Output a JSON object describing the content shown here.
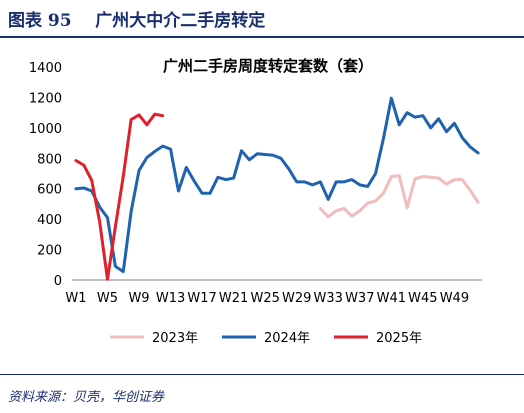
{
  "figure": {
    "label": "图表 95",
    "title": "广州大中介二手房转定",
    "source": "资料来源：贝壳，华创证券"
  },
  "chart_data": {
    "type": "line",
    "title": "广州二手房周度转定套数（套）",
    "xlabel": "",
    "ylabel": "",
    "ylim": [
      0,
      1400
    ],
    "yticks": [
      "0",
      "200",
      "400",
      "600",
      "800",
      "1000",
      "1200",
      "1400"
    ],
    "x": [
      "W1",
      "W2",
      "W3",
      "W4",
      "W5",
      "W6",
      "W7",
      "W8",
      "W9",
      "W10",
      "W11",
      "W12",
      "W13",
      "W14",
      "W15",
      "W16",
      "W17",
      "W18",
      "W19",
      "W20",
      "W21",
      "W22",
      "W23",
      "W24",
      "W25",
      "W26",
      "W27",
      "W28",
      "W29",
      "W30",
      "W31",
      "W32",
      "W33",
      "W34",
      "W35",
      "W36",
      "W37",
      "W38",
      "W39",
      "W40",
      "W41",
      "W42",
      "W43",
      "W44",
      "W45",
      "W46",
      "W47",
      "W48",
      "W49",
      "W50",
      "W51",
      "W52"
    ],
    "xtick_labels": [
      "W1",
      "W5",
      "W9",
      "W13",
      "W17",
      "W21",
      "W25",
      "W29",
      "W33",
      "W37",
      "W41",
      "W45",
      "W49"
    ],
    "grid": false,
    "legend_position": "bottom",
    "series": [
      {
        "name": "2023年",
        "color": "#f0bcbc",
        "values": [
          null,
          null,
          null,
          null,
          null,
          null,
          null,
          null,
          null,
          null,
          null,
          null,
          null,
          null,
          null,
          null,
          null,
          null,
          null,
          null,
          null,
          null,
          null,
          null,
          null,
          null,
          null,
          null,
          null,
          null,
          null,
          470,
          415,
          455,
          470,
          420,
          455,
          505,
          520,
          570,
          680,
          685,
          475,
          665,
          680,
          675,
          670,
          630,
          660,
          660,
          590,
          510
        ]
      },
      {
        "name": "2024年",
        "color": "#1f63b0",
        "values": [
          600,
          605,
          585,
          480,
          410,
          90,
          55,
          450,
          720,
          805,
          845,
          880,
          860,
          585,
          740,
          650,
          570,
          570,
          675,
          660,
          670,
          850,
          790,
          830,
          825,
          820,
          800,
          730,
          645,
          645,
          625,
          645,
          530,
          645,
          645,
          660,
          625,
          615,
          700,
          930,
          1195,
          1020,
          1100,
          1070,
          1080,
          1000,
          1060,
          975,
          1030,
          935,
          875,
          835
        ]
      },
      {
        "name": "2025年",
        "color": "#e0202a",
        "values": [
          785,
          755,
          655,
          385,
          5,
          350,
          680,
          1055,
          1085,
          1020,
          1090,
          1080,
          null,
          null,
          null,
          null,
          null,
          null,
          null,
          null,
          null,
          null,
          null,
          null,
          null,
          null,
          null,
          null,
          null,
          null,
          null,
          null,
          null,
          null,
          null,
          null,
          null,
          null,
          null,
          null,
          null,
          null,
          null,
          null,
          null,
          null,
          null,
          null,
          null,
          null,
          null,
          null
        ]
      }
    ]
  }
}
